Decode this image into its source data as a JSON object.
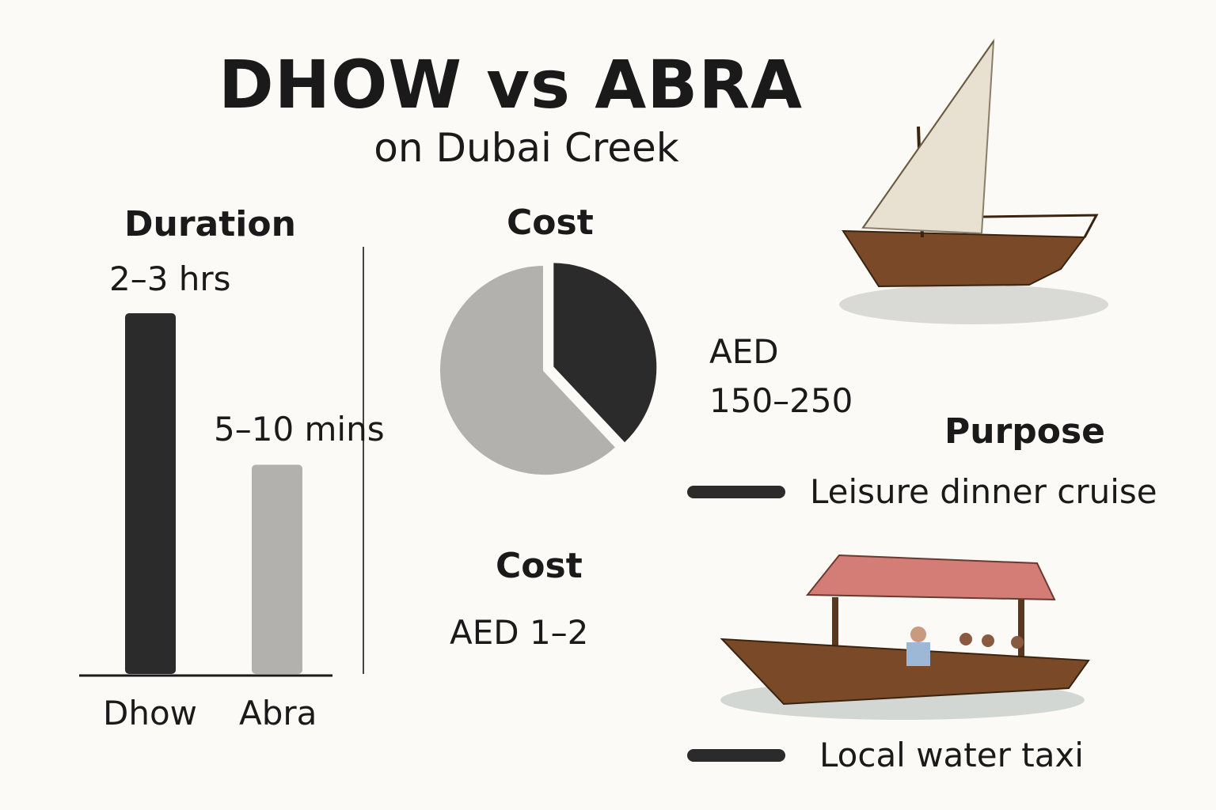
{
  "title": "DHOW vs ABRA",
  "subtitle": "on Dubai Creek",
  "colors": {
    "dark": "#2b2b2b",
    "light": "#b3b1ad",
    "background": "#fbfaf6",
    "abra_roof": "#d37d76",
    "wood": "#7a4a28"
  },
  "chart_data": [
    {
      "type": "bar",
      "title": "Duration",
      "categories": [
        "Dhow",
        "Abra"
      ],
      "value_labels": [
        "2–3 hrs",
        "5–10 mins"
      ],
      "relative_heights": [
        1.0,
        0.58
      ],
      "colors": [
        "#2b2b2b",
        "#b3b1ad"
      ]
    },
    {
      "type": "pie",
      "title": "Cost",
      "slices": [
        {
          "label": "AED 150–250",
          "fraction": 0.38,
          "color": "#2b2b2b"
        },
        {
          "label": "AED 1–2",
          "fraction": 0.62,
          "color": "#b3b1ad"
        }
      ]
    }
  ],
  "cost2": {
    "heading": "Cost",
    "value": "AED 1–2"
  },
  "dhow_cost": {
    "line1": "AED",
    "line2": "150–250"
  },
  "purpose": {
    "heading": "Purpose",
    "items": [
      {
        "label": "Leisure dinner cruise",
        "icon": "dash-icon"
      },
      {
        "label": "Local water taxi",
        "icon": "dash-icon"
      }
    ]
  },
  "images": [
    "dhow-sailboat",
    "abra-boat"
  ]
}
